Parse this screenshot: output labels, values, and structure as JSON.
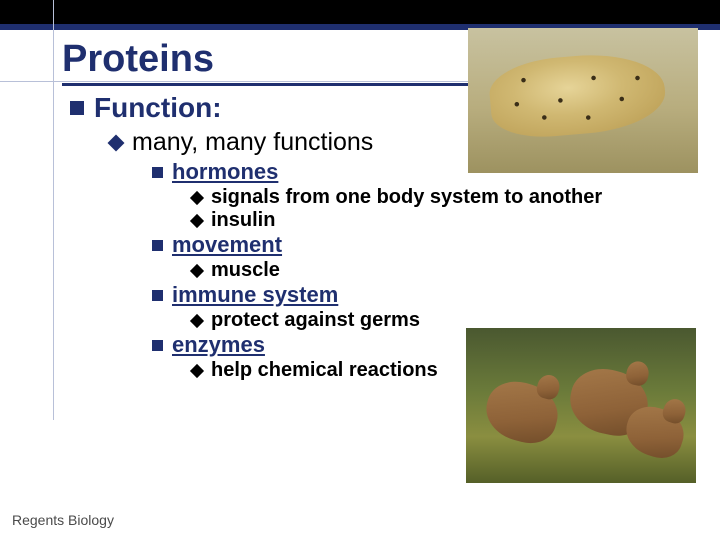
{
  "colors": {
    "accent": "#1f2f6f",
    "topbar": "#000000",
    "text_primary": "#000000",
    "guide_line": "#b8c0d8",
    "footer_text": "#4a4a4a"
  },
  "typography": {
    "title_fontsize": 38,
    "level1_fontsize": 28,
    "level2_fontsize": 25,
    "level3_fontsize": 22,
    "level4_fontsize": 20,
    "footer_fontsize": 14,
    "font_family": "Arial"
  },
  "title": "Proteins",
  "outline": {
    "l1_label": "Function:",
    "l2_label": "many, many functions",
    "items": [
      {
        "heading": "hormones",
        "points": [
          "signals from one body system to another",
          "insulin"
        ]
      },
      {
        "heading": "movement",
        "points": [
          "muscle"
        ]
      },
      {
        "heading": "immune system",
        "points": [
          "protect against germs"
        ]
      },
      {
        "heading": "enzymes",
        "points": [
          "help chemical reactions"
        ]
      }
    ]
  },
  "footer": "Regents Biology",
  "images": {
    "top_right": {
      "semantic": "running-cheetah",
      "bg_colors": [
        "#c8c2a0",
        "#b8ad7e",
        "#9d9260"
      ],
      "fur_colors": [
        "#e6d498",
        "#d0b872",
        "#b89a50"
      ],
      "spot_color": "#3a2e18"
    },
    "bottom_right": {
      "semantic": "hopping-kangaroos",
      "bg_colors": [
        "#4a5830",
        "#6a7a3a",
        "#8a8e40",
        "#556028"
      ],
      "body_colors": [
        "#a67a4a",
        "#8e6238",
        "#6e4a28"
      ]
    }
  }
}
